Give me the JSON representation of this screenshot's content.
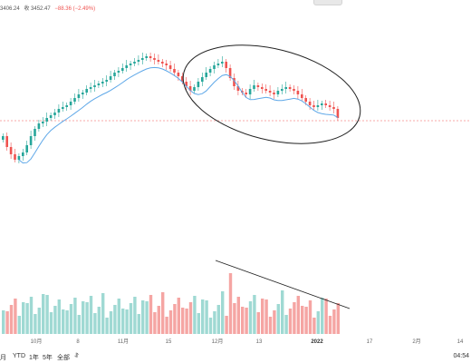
{
  "header": {
    "ohlc_fragments": [
      "3406.24",
      "收 3452.47",
      "−88.36 (−2.49%)"
    ]
  },
  "chart_data": {
    "type": "candlestick",
    "x_ticks": [
      "10月",
      "8",
      "11月",
      "15",
      "12月",
      "13",
      "2022",
      "17",
      "2月",
      "14"
    ],
    "bold_ticks": [
      "2022"
    ],
    "colors": {
      "up": "#26a69a",
      "down": "#ef5350",
      "vol_up": "#9fd9d3",
      "vol_down": "#f5a5a3",
      "ma": "#5fa8e8",
      "overlay": "#222222"
    },
    "ma_line": true,
    "annotations": [
      "ellipse",
      "trendline"
    ]
  },
  "bottom_bar": {
    "periods": [
      "月",
      "YTD",
      "1年",
      "5年",
      "全部"
    ],
    "compare_icon": "compare-icon",
    "time": "04:54"
  }
}
